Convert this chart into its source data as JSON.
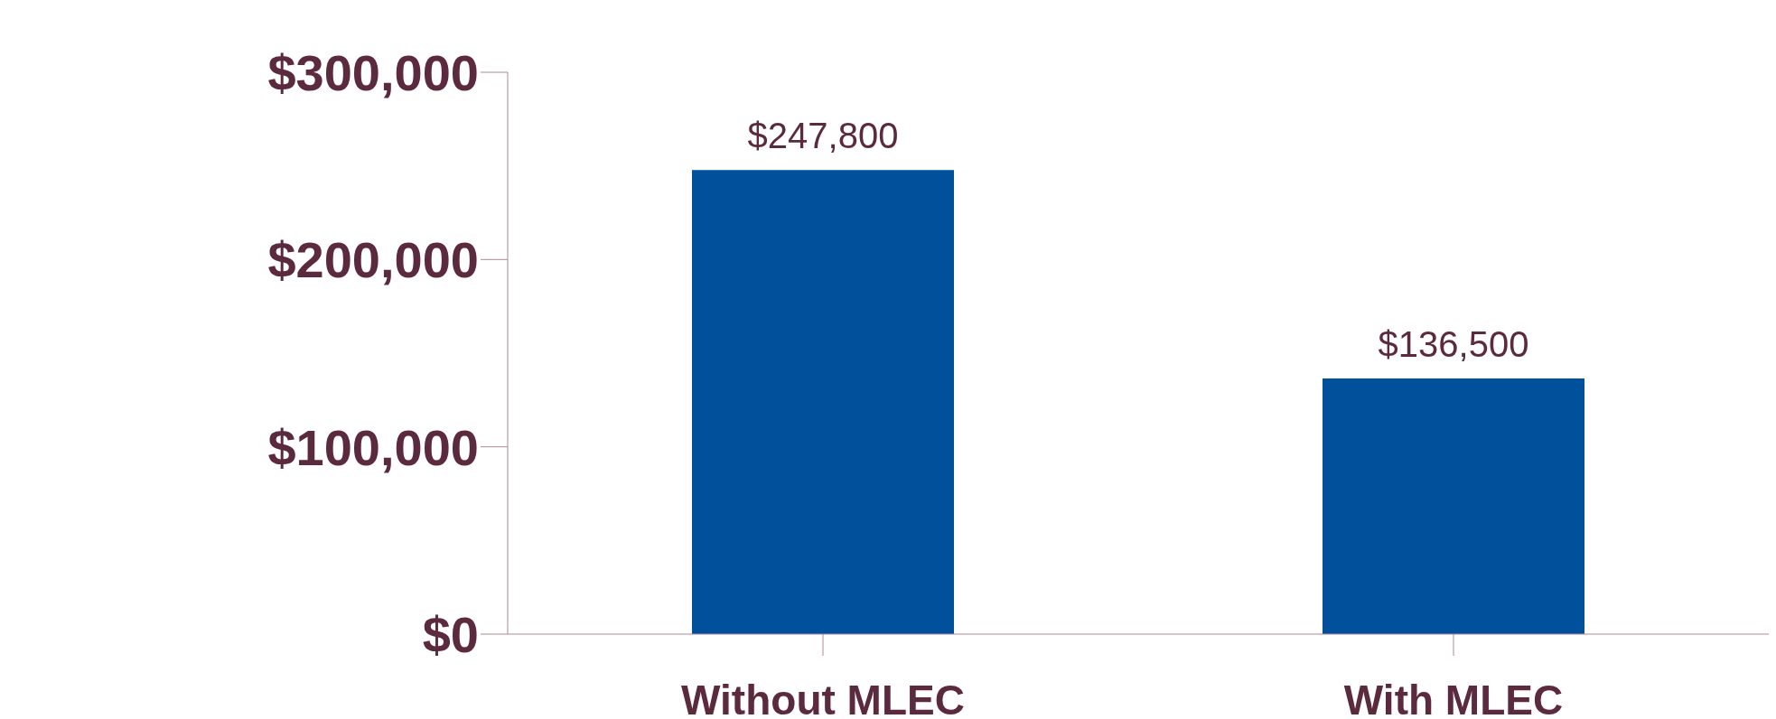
{
  "chart_data": {
    "type": "bar",
    "categories": [
      "Without MLEC",
      "With MLEC"
    ],
    "values": [
      247800,
      136500
    ],
    "color": "#00509b",
    "value_labels": [
      "$247,800",
      "$136,500"
    ],
    "ylim": [
      0,
      300000
    ],
    "yticks": [
      {
        "value": 0,
        "label": "$0"
      },
      {
        "value": 100000,
        "label": "$100,000"
      },
      {
        "value": 200000,
        "label": "$200,000"
      },
      {
        "value": 300000,
        "label": "$300,000"
      }
    ],
    "grid": false,
    "legend": false
  }
}
